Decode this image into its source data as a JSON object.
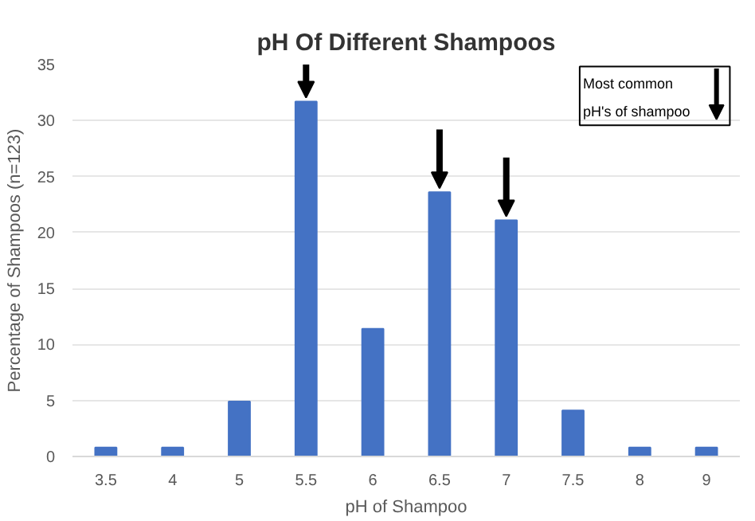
{
  "chart_data": {
    "type": "bar",
    "title": "pH Of Different Shampoos",
    "xlabel": "pH of Shampoo",
    "ylabel": "Percentage of Shampoos (n=123)",
    "categories": [
      "3.5",
      "4",
      "5",
      "5.5",
      "6",
      "6.5",
      "7",
      "7.5",
      "8",
      "9"
    ],
    "values": [
      0.8,
      0.8,
      4.9,
      31.7,
      11.4,
      23.6,
      21.1,
      4.1,
      0.8,
      0.8
    ],
    "color": "#4472c4",
    "ylim": [
      0,
      35
    ],
    "yticks": [
      0,
      5,
      10,
      15,
      20,
      25,
      30,
      35
    ],
    "grid": "y",
    "annotations": [
      "Most common pH's of shampoo"
    ]
  }
}
